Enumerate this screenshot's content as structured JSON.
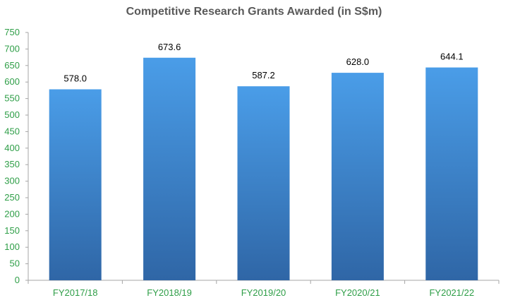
{
  "chart_data": {
    "type": "bar",
    "title": "Competitive Research Grants Awarded (in S$m)",
    "categories": [
      "FY2017/18",
      "FY2018/19",
      "FY2019/20",
      "FY2020/21",
      "FY2021/22"
    ],
    "values": [
      578.0,
      673.6,
      587.2,
      628.0,
      644.1
    ],
    "data_labels": [
      "578.0",
      "673.6",
      "587.2",
      "628.0",
      "644.1"
    ],
    "yticks": [
      "0",
      "50",
      "100",
      "150",
      "200",
      "250",
      "300",
      "350",
      "400",
      "450",
      "500",
      "550",
      "600",
      "650",
      "700",
      "750"
    ],
    "ylim": [
      0,
      750
    ],
    "xlabel": "",
    "ylabel": "",
    "grid": false,
    "legend": "none",
    "colors": {
      "bar_top": "#4A9DE8",
      "bar_bottom": "#2F66A6",
      "axis_label": "#2E9E47",
      "data_label": "#000000",
      "title": "#595959",
      "axis_line": "#A6A6A6"
    }
  }
}
